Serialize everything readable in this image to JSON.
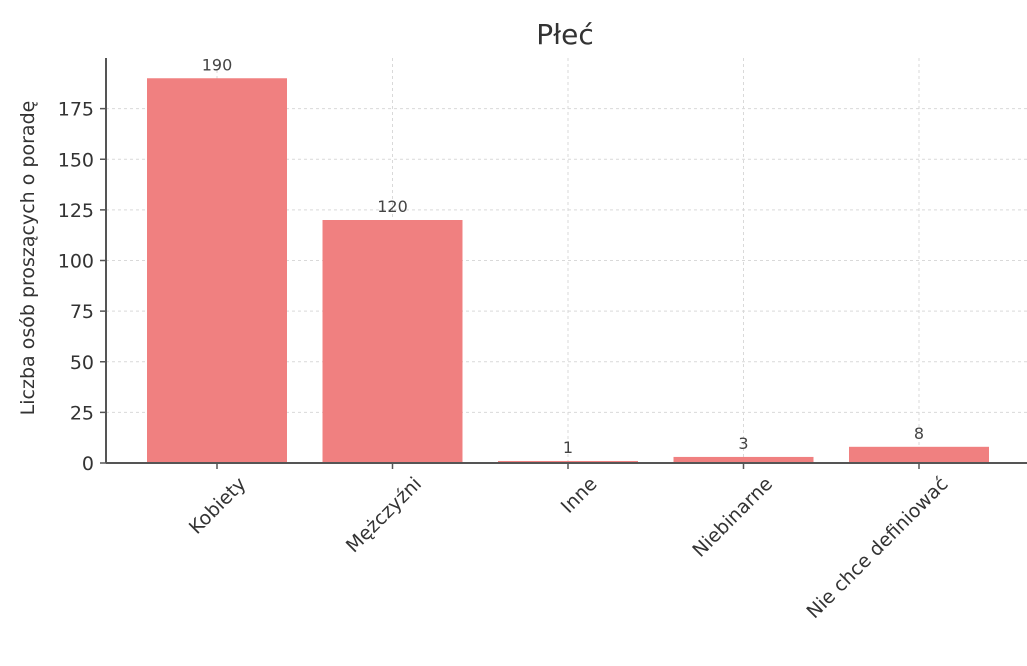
{
  "chart_data": {
    "type": "bar",
    "title": "Płeć",
    "xlabel": "",
    "ylabel": "Liczba osób proszących o poradę",
    "categories": [
      "Kobiety",
      "Mężczyźni",
      "Inne",
      "Niebinarne",
      "Nie chce definiować"
    ],
    "values": [
      190,
      120,
      1,
      3,
      8
    ],
    "data_labels": [
      "190",
      "120",
      "1",
      "3",
      "8"
    ],
    "ylim": [
      0,
      200
    ],
    "yticks": [
      0,
      25,
      50,
      75,
      100,
      125,
      150,
      175
    ],
    "ytick_labels": [
      "0",
      "25",
      "50",
      "75",
      "100",
      "125",
      "150",
      "175"
    ],
    "grid": true,
    "bar_color": "#f08080"
  }
}
